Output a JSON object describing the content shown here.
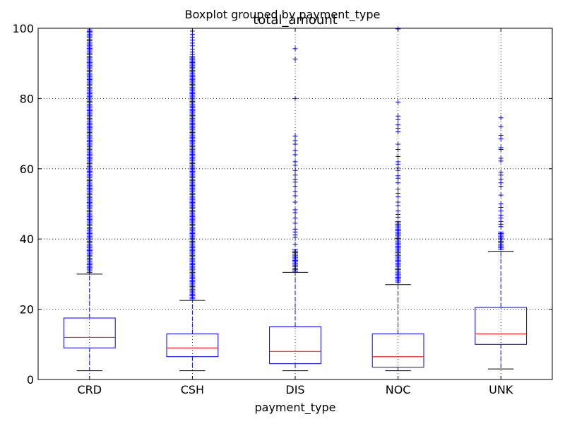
{
  "suptitle": "Boxplot grouped by payment_type",
  "chart_data": {
    "type": "boxplot",
    "title": "total_amount",
    "xlabel": "payment_type",
    "ylabel": "",
    "ylim": [
      0,
      100
    ],
    "yticks": [
      0,
      20,
      40,
      60,
      80,
      100
    ],
    "grid": true,
    "colors": {
      "box": "#0000ff",
      "median": "#ff0000",
      "whisker": "#0000ff",
      "cap": "#000000",
      "flier": "#0000ff",
      "grid": "#000000"
    },
    "categories": [
      "CRD",
      "CSH",
      "DIS",
      "NOC",
      "UNK"
    ],
    "boxes": [
      {
        "category": "CRD",
        "whislo": 2.5,
        "q1": 9.0,
        "median": 12.0,
        "q3": 17.5,
        "whishi": 30.0,
        "fliers_dense": [
          30.2,
          100
        ],
        "fliers": []
      },
      {
        "category": "CSH",
        "whislo": 2.5,
        "q1": 6.5,
        "median": 9.0,
        "q3": 13.0,
        "whishi": 22.5,
        "fliers_dense": [
          22.8,
          92
        ],
        "fliers": [
          92.5,
          93.2,
          94.0,
          95.0,
          95.8,
          96.6,
          97.4,
          98.3,
          99.2
        ]
      },
      {
        "category": "DIS",
        "whislo": 2.5,
        "q1": 4.5,
        "median": 8.0,
        "q3": 15.0,
        "whishi": 30.5,
        "fliers_dense": [
          30.8,
          37.0
        ],
        "fliers": [
          38.5,
          40.5,
          41.2,
          42.0,
          42.8,
          44.5,
          46.0,
          47.5,
          48.3,
          50.5,
          52.3,
          53.5,
          55.0,
          56.2,
          57.0,
          58.2,
          59.5,
          61.0,
          62.0,
          64.0,
          65.2,
          67.0,
          68.0,
          69.3,
          80.0,
          91.2,
          94.2
        ]
      },
      {
        "category": "NOC",
        "whislo": 2.5,
        "q1": 3.5,
        "median": 6.5,
        "q3": 13.0,
        "whishi": 27.0,
        "fliers_dense": [
          27.3,
          45.0
        ],
        "fliers": [
          46.2,
          47.0,
          48.0,
          49.5,
          50.5,
          52.0,
          53.0,
          54.2,
          56.0,
          57.3,
          58.0,
          59.5,
          60.2,
          61.3,
          62.0,
          63.5,
          65.5,
          67.0,
          70.5,
          71.5,
          72.5,
          74.0,
          75.0,
          79.0,
          99.8
        ]
      },
      {
        "category": "UNK",
        "whislo": 3.0,
        "q1": 10.0,
        "median": 13.0,
        "q3": 20.5,
        "whishi": 36.5,
        "fliers_dense": [
          36.8,
          42.0
        ],
        "fliers": [
          43.5,
          44.2,
          45.0,
          46.0,
          46.8,
          48.0,
          49.0,
          50.0,
          52.5,
          55.0,
          56.0,
          57.0,
          58.2,
          59.0,
          62.2,
          63.0,
          65.5,
          66.0,
          68.5,
          69.5,
          72.0,
          74.5
        ]
      }
    ]
  }
}
